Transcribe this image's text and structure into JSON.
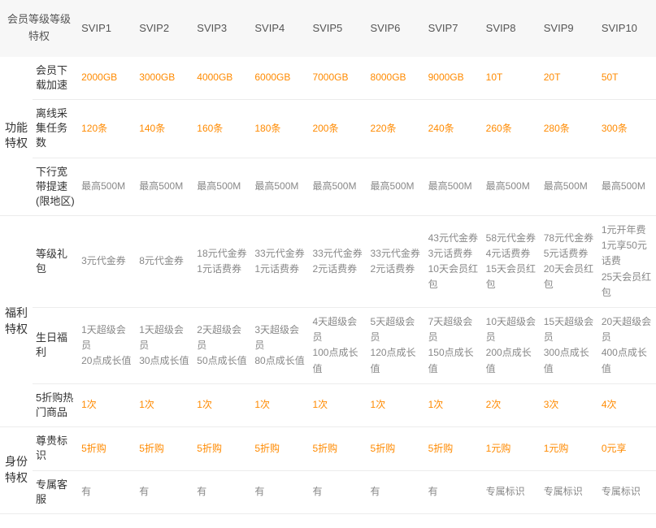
{
  "header": {
    "title_line1": "会员等级等级",
    "title_line2": "特权",
    "levels": [
      "SVIP1",
      "SVIP2",
      "SVIP3",
      "SVIP4",
      "SVIP5",
      "SVIP6",
      "SVIP7",
      "SVIP8",
      "SVIP9",
      "SVIP10"
    ]
  },
  "styles": {
    "header_bg": "#f7f7f7",
    "header_color": "#555555",
    "text_color": "#666666",
    "cat_color": "#333333",
    "value_color": "#888888",
    "accent_color": "#ff8a00",
    "border_color": "#ececec",
    "font_size_base": 13,
    "font_size_value": 12,
    "cat_col_width": 40,
    "sub_col_width": 56,
    "val_col_width": 71
  },
  "categories": [
    {
      "name": "功能特权",
      "rows": [
        {
          "label": "会员下载加速",
          "values": [
            [
              "2000GB"
            ],
            [
              "3000GB"
            ],
            [
              "4000GB"
            ],
            [
              "6000GB"
            ],
            [
              "7000GB"
            ],
            [
              "8000GB"
            ],
            [
              "9000GB"
            ],
            [
              "10T"
            ],
            [
              "20T"
            ],
            [
              "50T"
            ]
          ],
          "accent": true
        },
        {
          "label": "离线采集\n任务数",
          "values": [
            [
              "120条"
            ],
            [
              "140条"
            ],
            [
              "160条"
            ],
            [
              "180条"
            ],
            [
              "200条"
            ],
            [
              "220条"
            ],
            [
              "240条"
            ],
            [
              "260条"
            ],
            [
              "280条"
            ],
            [
              "300条"
            ]
          ],
          "accent": true
        },
        {
          "label": "下行宽带提速(限地区)",
          "values": [
            [
              "最高500M"
            ],
            [
              "最高500M"
            ],
            [
              "最高500M"
            ],
            [
              "最高500M"
            ],
            [
              "最高500M"
            ],
            [
              "最高500M"
            ],
            [
              "最高500M"
            ],
            [
              "最高500M"
            ],
            [
              "最高500M"
            ],
            [
              "最高500M"
            ]
          ],
          "accent": false
        }
      ]
    },
    {
      "name": "福利特权",
      "rows": [
        {
          "label": "等级礼包",
          "values": [
            [
              "3元代金券"
            ],
            [
              "8元代金券"
            ],
            [
              "18元代金券",
              "1元话费券"
            ],
            [
              "33元代金券",
              "1元话费券"
            ],
            [
              "33元代金券",
              "2元话费券"
            ],
            [
              "33元代金券",
              "2元话费券"
            ],
            [
              "43元代金券",
              "3元话费券",
              "10天会员红包"
            ],
            [
              "58元代金券",
              "4元话费券",
              "15天会员红包"
            ],
            [
              "78元代金券",
              "5元话费券",
              "20天会员红包"
            ],
            [
              "1元开年费",
              "1元享50元话费",
              "25天会员红包"
            ]
          ],
          "accent": false
        },
        {
          "label": "生日福利",
          "values": [
            [
              "1天超级会员",
              "20点成长值"
            ],
            [
              "1天超级会员",
              "30点成长值"
            ],
            [
              "2天超级会员",
              "50点成长值"
            ],
            [
              "3天超级会员",
              "80点成长值"
            ],
            [
              "4天超级会员",
              "100点成长值"
            ],
            [
              "5天超级会员",
              "120点成长值"
            ],
            [
              "7天超级会员",
              "150点成长值"
            ],
            [
              "10天超级会员",
              "200点成长值"
            ],
            [
              "15天超级会员",
              "300点成长值"
            ],
            [
              "20天超级会员",
              "400点成长值"
            ]
          ],
          "accent": false
        },
        {
          "label": "5折购热门商品",
          "values": [
            [
              "1次"
            ],
            [
              "1次"
            ],
            [
              "1次"
            ],
            [
              "1次"
            ],
            [
              "1次"
            ],
            [
              "1次"
            ],
            [
              "1次"
            ],
            [
              "2次"
            ],
            [
              "3次"
            ],
            [
              "4次"
            ]
          ],
          "accent": true
        }
      ]
    },
    {
      "name": "身份特权",
      "rows": [
        {
          "label": "尊贵标识",
          "values": [
            [
              "5折购"
            ],
            [
              "5折购"
            ],
            [
              "5折购"
            ],
            [
              "5折购"
            ],
            [
              "5折购"
            ],
            [
              "5折购"
            ],
            [
              "5折购"
            ],
            [
              "1元购"
            ],
            [
              "1元购"
            ],
            [
              "0元享"
            ]
          ],
          "accent": true
        },
        {
          "label": "专属客服",
          "values": [
            [
              "有"
            ],
            [
              "有"
            ],
            [
              "有"
            ],
            [
              "有"
            ],
            [
              "有"
            ],
            [
              "有"
            ],
            [
              "有"
            ],
            [
              "专属标识"
            ],
            [
              "专属标识"
            ],
            [
              "专属标识"
            ]
          ],
          "accent": false
        }
      ]
    }
  ]
}
